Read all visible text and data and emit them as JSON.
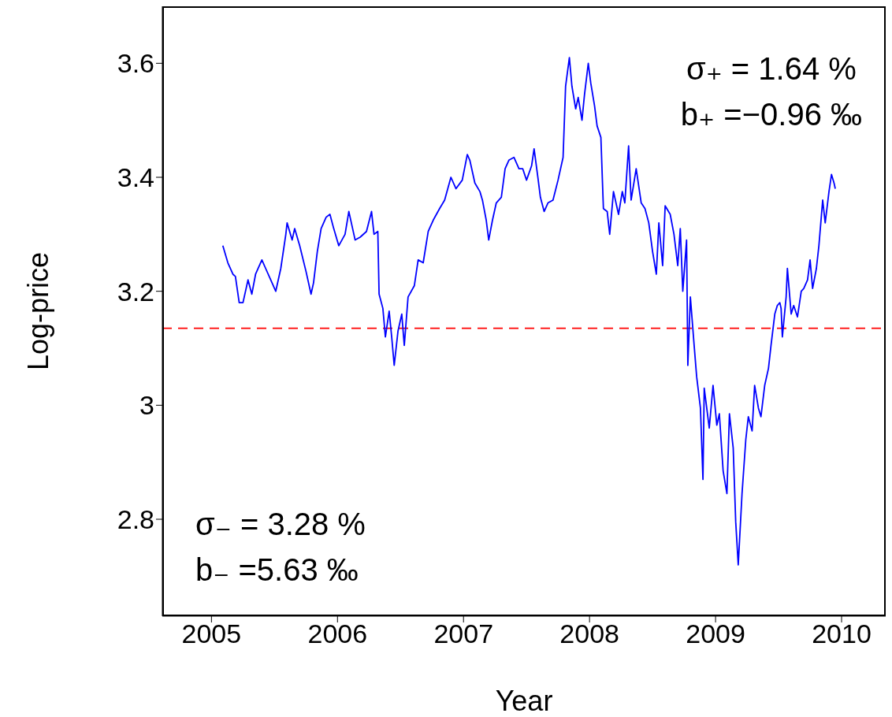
{
  "chart_data": {
    "type": "line",
    "xlabel": "Year",
    "ylabel": "Log-price",
    "x": [
      2005.09,
      2005.13,
      2005.17,
      2005.19,
      2005.22,
      2005.25,
      2005.29,
      2005.32,
      2005.35,
      2005.4,
      2005.43,
      2005.47,
      2005.51,
      2005.55,
      2005.59,
      2005.6,
      2005.64,
      2005.66,
      2005.7,
      2005.75,
      2005.79,
      2005.81,
      2005.84,
      2005.87,
      2005.91,
      2005.94,
      2005.97,
      2006.01,
      2006.06,
      2006.09,
      2006.14,
      2006.18,
      2006.23,
      2006.27,
      2006.29,
      2006.32,
      2006.33,
      2006.36,
      2006.38,
      2006.41,
      2006.43,
      2006.45,
      2006.48,
      2006.51,
      2006.53,
      2006.56,
      2006.61,
      2006.64,
      2006.68,
      2006.72,
      2006.76,
      2006.81,
      2006.85,
      2006.9,
      2006.94,
      2006.99,
      2007.03,
      2007.05,
      2007.09,
      2007.13,
      2007.15,
      2007.18,
      2007.2,
      2007.23,
      2007.26,
      2007.3,
      2007.33,
      2007.36,
      2007.4,
      2007.44,
      2007.47,
      2007.5,
      2007.54,
      2007.56,
      2007.59,
      2007.61,
      2007.64,
      2007.67,
      2007.71,
      2007.75,
      2007.79,
      2007.81,
      2007.84,
      2007.86,
      2007.89,
      2007.91,
      2007.94,
      2007.96,
      2007.99,
      2008.01,
      2008.04,
      2008.06,
      2008.09,
      2008.11,
      2008.14,
      2008.16,
      2008.19,
      2008.23,
      2008.26,
      2008.28,
      2008.31,
      2008.33,
      2008.37,
      2008.41,
      2008.44,
      2008.47,
      2008.5,
      2008.53,
      2008.55,
      2008.58,
      2008.6,
      2008.64,
      2008.67,
      2008.7,
      2008.72,
      2008.74,
      2008.77,
      2008.78,
      2008.8,
      2008.83,
      2008.85,
      2008.88,
      2008.9,
      2008.91,
      2008.95,
      2008.98,
      2009.01,
      2009.03,
      2009.06,
      2009.09,
      2009.11,
      2009.14,
      2009.16,
      2009.18,
      2009.21,
      2009.24,
      2009.26,
      2009.29,
      2009.31,
      2009.34,
      2009.36,
      2009.39,
      2009.42,
      2009.44,
      2009.47,
      2009.49,
      2009.51,
      2009.52,
      2009.53,
      2009.56,
      2009.57,
      2009.6,
      2009.62,
      2009.65,
      2009.68,
      2009.7,
      2009.73,
      2009.75,
      2009.77,
      2009.8,
      2009.82,
      2009.85,
      2009.87,
      2009.9,
      2009.92,
      2009.94,
      2009.95
    ],
    "series": [
      {
        "color": "#0000ff",
        "values": [
          3.28,
          3.25,
          3.23,
          3.226,
          3.18,
          3.18,
          3.22,
          3.195,
          3.23,
          3.255,
          3.24,
          3.22,
          3.2,
          3.24,
          3.3,
          3.32,
          3.29,
          3.31,
          3.28,
          3.235,
          3.195,
          3.215,
          3.27,
          3.31,
          3.33,
          3.335,
          3.31,
          3.28,
          3.3,
          3.34,
          3.29,
          3.295,
          3.305,
          3.34,
          3.3,
          3.305,
          3.195,
          3.17,
          3.12,
          3.165,
          3.12,
          3.07,
          3.13,
          3.16,
          3.105,
          3.19,
          3.21,
          3.255,
          3.25,
          3.305,
          3.325,
          3.345,
          3.36,
          3.4,
          3.38,
          3.395,
          3.44,
          3.43,
          3.39,
          3.375,
          3.36,
          3.325,
          3.29,
          3.325,
          3.355,
          3.365,
          3.415,
          3.43,
          3.435,
          3.415,
          3.415,
          3.395,
          3.42,
          3.45,
          3.4,
          3.365,
          3.34,
          3.355,
          3.36,
          3.395,
          3.435,
          3.56,
          3.61,
          3.56,
          3.52,
          3.54,
          3.5,
          3.545,
          3.6,
          3.565,
          3.525,
          3.49,
          3.47,
          3.345,
          3.34,
          3.3,
          3.375,
          3.335,
          3.375,
          3.355,
          3.455,
          3.36,
          3.415,
          3.355,
          3.345,
          3.32,
          3.27,
          3.23,
          3.32,
          3.245,
          3.35,
          3.335,
          3.3,
          3.245,
          3.31,
          3.2,
          3.29,
          3.07,
          3.19,
          3.105,
          3.05,
          2.995,
          2.87,
          3.03,
          2.96,
          3.035,
          2.965,
          2.985,
          2.885,
          2.845,
          2.985,
          2.925,
          2.795,
          2.72,
          2.845,
          2.94,
          2.98,
          2.955,
          3.035,
          2.995,
          2.98,
          3.035,
          3.065,
          3.105,
          3.16,
          3.175,
          3.18,
          3.17,
          3.12,
          3.19,
          3.24,
          3.16,
          3.175,
          3.155,
          3.2,
          3.205,
          3.22,
          3.255,
          3.205,
          3.24,
          3.28,
          3.36,
          3.32,
          3.375,
          3.405,
          3.39,
          3.38
        ]
      }
    ],
    "xlim": [
      2004.61,
      2010.35
    ],
    "xticks": [
      2005,
      2006,
      2007,
      2008,
      2009,
      2010
    ],
    "ylim": [
      2.63,
      3.7
    ],
    "yticks": [
      2.8,
      3,
      3.2,
      3.4,
      3.6
    ],
    "grid": false,
    "legend": false,
    "marker": "none",
    "line_style": "solid",
    "ref_lines": [
      {
        "axis": "y",
        "value": 3.135,
        "color": "#ff0000",
        "line_style": "dashed"
      }
    ],
    "annotations": [
      "σ₊ = 1.64 %",
      "b₊ =−0.96 ‰",
      "σ₋ = 3.28 %",
      "b₋ =5.63 ‰"
    ]
  }
}
